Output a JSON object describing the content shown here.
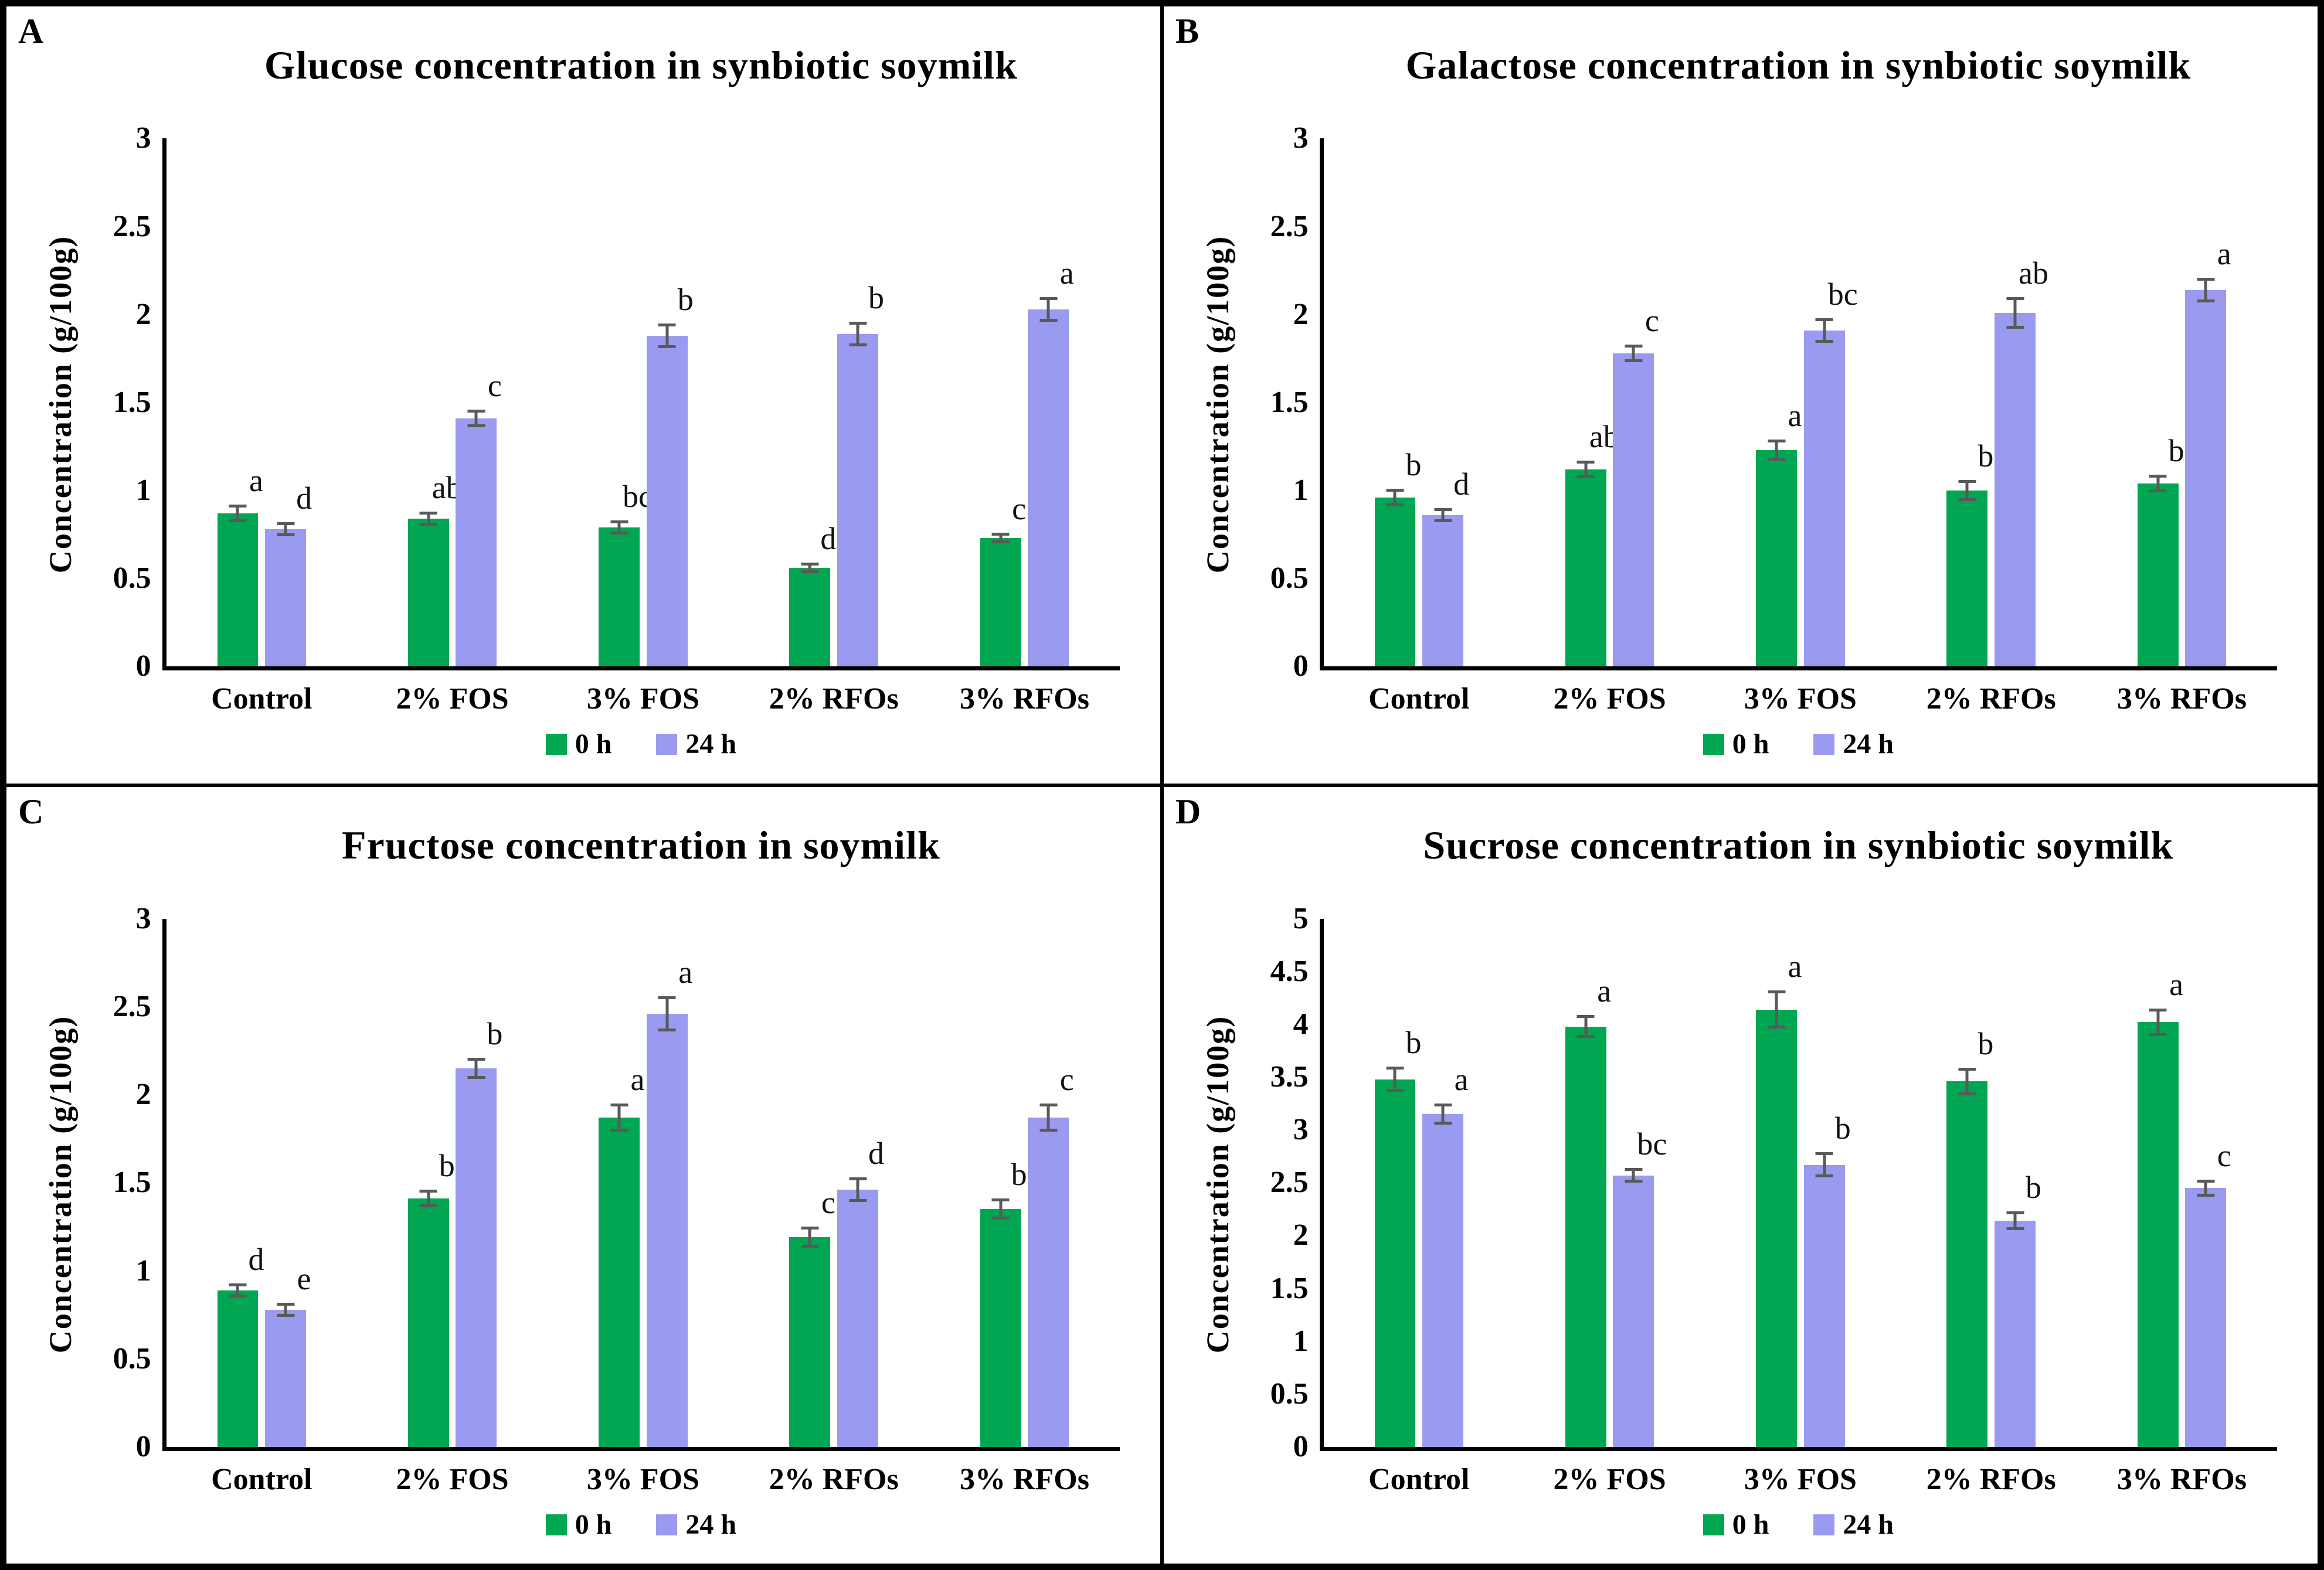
{
  "figure": {
    "colors": {
      "series_0h": "#00A651",
      "series_24h": "#9A9AF0",
      "error_bar": "#595959",
      "axis": "#000000",
      "background": "#FFFFFF"
    }
  },
  "chart_data": [
    {
      "panel": "A",
      "type": "bar",
      "title": "Glucose concentration in synbiotic soymilk",
      "xlabel": "",
      "ylabel": "Concentration (g/100g)",
      "ylim": [
        0,
        3
      ],
      "ytick_labels": [
        "0",
        "0.5",
        "1",
        "1.5",
        "2",
        "2.5",
        "3"
      ],
      "grid": false,
      "legend_position": "bottom",
      "categories": [
        "Control",
        "2% FOS",
        "3% FOS",
        "2% RFOs",
        "3% RFOs"
      ],
      "series": [
        {
          "name": "0 h",
          "values": [
            0.87,
            0.84,
            0.79,
            0.56,
            0.73
          ],
          "errors": [
            0.05,
            0.04,
            0.04,
            0.03,
            0.03
          ],
          "letters": [
            "a",
            "ab",
            "bc",
            "d",
            "c"
          ]
        },
        {
          "name": "24 h",
          "values": [
            0.78,
            1.41,
            1.88,
            1.89,
            2.03
          ],
          "errors": [
            0.04,
            0.05,
            0.07,
            0.07,
            0.07
          ],
          "letters": [
            "d",
            "c",
            "b",
            "b",
            "a"
          ]
        }
      ],
      "legend": [
        "0 h",
        "24 h"
      ]
    },
    {
      "panel": "B",
      "type": "bar",
      "title": "Galactose concentration in synbiotic soymilk",
      "xlabel": "",
      "ylabel": "Concentration (g/100g)",
      "ylim": [
        0,
        3
      ],
      "ytick_labels": [
        "0",
        "0.5",
        "1",
        "1.5",
        "2",
        "2.5",
        "3"
      ],
      "grid": false,
      "legend_position": "bottom",
      "categories": [
        "Control",
        "2% FOS",
        "3% FOS",
        "2% RFOs",
        "3% RFOs"
      ],
      "series": [
        {
          "name": "0 h",
          "values": [
            0.96,
            1.12,
            1.23,
            1.0,
            1.04
          ],
          "errors": [
            0.05,
            0.05,
            0.06,
            0.06,
            0.05
          ],
          "letters": [
            "b",
            "ab",
            "a",
            "b",
            "b"
          ]
        },
        {
          "name": "24 h",
          "values": [
            0.86,
            1.78,
            1.91,
            2.01,
            2.14
          ],
          "errors": [
            0.04,
            0.05,
            0.07,
            0.09,
            0.07
          ],
          "letters": [
            "d",
            "c",
            "bc",
            "ab",
            "a"
          ]
        }
      ],
      "legend": [
        "0 h",
        "24 h"
      ]
    },
    {
      "panel": "C",
      "type": "bar",
      "title": "Fructose concentration in soymilk",
      "xlabel": "",
      "ylabel": "Concentration (g/100g)",
      "ylim": [
        0,
        3
      ],
      "ytick_labels": [
        "0",
        "0.5",
        "1",
        "1.5",
        "2",
        "2.5",
        "3"
      ],
      "grid": false,
      "legend_position": "bottom",
      "categories": [
        "Control",
        "2% FOS",
        "3% FOS",
        "2% RFOs",
        "3% RFOs"
      ],
      "series": [
        {
          "name": "0 h",
          "values": [
            0.89,
            1.41,
            1.87,
            1.19,
            1.35
          ],
          "errors": [
            0.04,
            0.05,
            0.08,
            0.06,
            0.06
          ],
          "letters": [
            "d",
            "b",
            "a",
            "c",
            "b"
          ]
        },
        {
          "name": "24 h",
          "values": [
            0.78,
            2.15,
            2.46,
            1.46,
            1.87
          ],
          "errors": [
            0.04,
            0.06,
            0.1,
            0.07,
            0.08
          ],
          "letters": [
            "e",
            "b",
            "a",
            "d",
            "c"
          ]
        }
      ],
      "legend": [
        "0 h",
        "24 h"
      ]
    },
    {
      "panel": "D",
      "type": "bar",
      "title": "Sucrose concentration in synbiotic soymilk",
      "xlabel": "",
      "ylabel": "Concentration (g/100g)",
      "ylim": [
        0,
        5
      ],
      "ytick_labels": [
        "0",
        "0.5",
        "1",
        "1.5",
        "2",
        "2.5",
        "3",
        "3.5",
        "4",
        "4.5",
        "5"
      ],
      "grid": false,
      "legend_position": "bottom",
      "categories": [
        "Control",
        "2% FOS",
        "3% FOS",
        "2% RFOs",
        "3% RFOs"
      ],
      "series": [
        {
          "name": "0 h",
          "values": [
            3.48,
            3.98,
            4.14,
            3.46,
            4.02
          ],
          "errors": [
            0.12,
            0.11,
            0.18,
            0.13,
            0.13
          ],
          "letters": [
            "b",
            "a",
            "a",
            "b",
            "a"
          ]
        },
        {
          "name": "24 h",
          "values": [
            3.15,
            2.57,
            2.67,
            2.14,
            2.45
          ],
          "errors": [
            0.1,
            0.07,
            0.12,
            0.09,
            0.08
          ],
          "letters": [
            "a",
            "bc",
            "b",
            "b",
            "c"
          ]
        }
      ],
      "legend": [
        "0 h",
        "24 h"
      ]
    }
  ]
}
